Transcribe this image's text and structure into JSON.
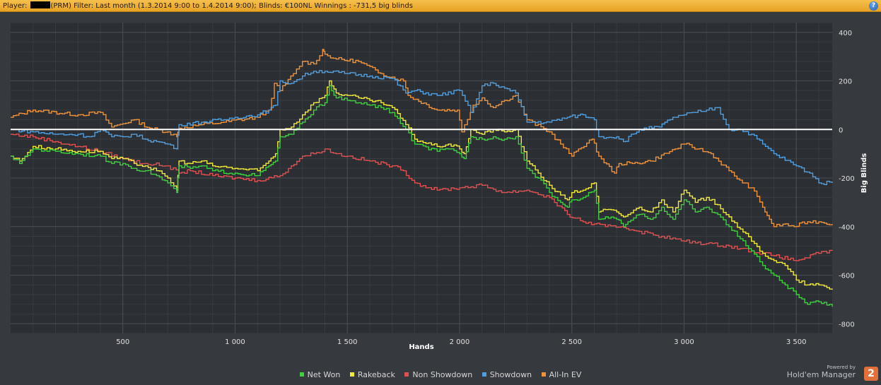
{
  "header": {
    "player_label": "Player:",
    "player_suffix": "(PRM)",
    "filter_text": "Filter:  Last month (1.3.2014 9:00 to 1.4.2014 9:00); Blinds: €100NL Winnings : -731,5 big blinds",
    "help_icon": "question-mark-icon"
  },
  "chart_data": {
    "type": "line",
    "title": "",
    "xlabel": "Hands",
    "ylabel": "Big Blinds",
    "xlim": [
      0,
      3660
    ],
    "ylim": [
      -840,
      440
    ],
    "x_ticks": [
      500,
      1000,
      1500,
      2000,
      2500,
      3000,
      3500
    ],
    "x_tick_labels": [
      "500",
      "1 000",
      "1 500",
      "2 000",
      "2 500",
      "3 000",
      "3 500"
    ],
    "y_ticks": [
      400,
      200,
      0,
      -200,
      -400,
      -600,
      -800
    ],
    "y_tick_labels": [
      "400",
      "200",
      "0",
      "-200",
      "-400",
      "-600",
      "-800"
    ],
    "grid": true,
    "zero_line": true,
    "legend_position": "bottom",
    "series": [
      {
        "name": "All-In EV",
        "color": "#f0923a",
        "x": [
          0,
          100,
          300,
          400,
          450,
          550,
          620,
          700,
          740,
          750,
          850,
          950,
          1100,
          1150,
          1175,
          1200,
          1260,
          1300,
          1350,
          1390,
          1400,
          1450,
          1550,
          1650,
          1750,
          1770,
          1900,
          1990,
          2010,
          2060,
          2100,
          2150,
          2200,
          2250,
          2300,
          2400,
          2450,
          2500,
          2530,
          2590,
          2620,
          2690,
          2710,
          2770,
          2850,
          2960,
          3000,
          3060,
          3120,
          3200,
          3260,
          3300,
          3350,
          3380,
          3400,
          3440,
          3490,
          3550,
          3600,
          3660
        ],
        "y": [
          50,
          80,
          60,
          70,
          10,
          40,
          5,
          -10,
          -30,
          5,
          20,
          30,
          50,
          80,
          190,
          160,
          230,
          280,
          270,
          330,
          310,
          290,
          280,
          230,
          200,
          140,
          80,
          80,
          -10,
          100,
          130,
          90,
          120,
          140,
          40,
          -10,
          -60,
          -110,
          -80,
          -40,
          -110,
          -180,
          -140,
          -140,
          -130,
          -80,
          -60,
          -80,
          -100,
          -170,
          -220,
          -240,
          -320,
          -370,
          -400,
          -390,
          -400,
          -380,
          -380,
          -390
        ]
      },
      {
        "name": "Showdown",
        "color": "#4f9ee0",
        "x": [
          0,
          100,
          200,
          300,
          350,
          400,
          450,
          500,
          550,
          600,
          650,
          700,
          740,
          750,
          850,
          950,
          1000,
          1100,
          1150,
          1180,
          1200,
          1250,
          1300,
          1350,
          1400,
          1500,
          1600,
          1700,
          1760,
          1800,
          1900,
          2000,
          2050,
          2100,
          2150,
          2200,
          2250,
          2300,
          2400,
          2480,
          2550,
          2600,
          2620,
          2700,
          2730,
          2800,
          2890,
          2950,
          3000,
          3050,
          3100,
          3150,
          3200,
          3250,
          3300,
          3350,
          3400,
          3500,
          3560,
          3600,
          3660
        ],
        "y": [
          0,
          -10,
          -20,
          -20,
          -30,
          0,
          -30,
          -30,
          -20,
          -40,
          -50,
          -60,
          -80,
          20,
          30,
          40,
          50,
          60,
          80,
          100,
          200,
          190,
          220,
          240,
          240,
          230,
          220,
          210,
          150,
          160,
          140,
          160,
          70,
          180,
          190,
          170,
          150,
          30,
          30,
          50,
          60,
          40,
          -30,
          -30,
          -50,
          0,
          10,
          50,
          60,
          70,
          80,
          90,
          0,
          0,
          -20,
          -60,
          -100,
          -150,
          -180,
          -220,
          -220
        ]
      },
      {
        "name": "Non Showdown",
        "color": "#e05050",
        "x": [
          0,
          100,
          200,
          300,
          400,
          500,
          600,
          700,
          750,
          800,
          900,
          1000,
          1100,
          1200,
          1250,
          1300,
          1350,
          1400,
          1450,
          1500,
          1600,
          1700,
          1750,
          1800,
          1900,
          2000,
          2100,
          2200,
          2300,
          2400,
          2480,
          2550,
          2650,
          2720,
          2800,
          2900,
          3000,
          3100,
          3200,
          3300,
          3400,
          3500,
          3600,
          3660
        ],
        "y": [
          -20,
          -30,
          -50,
          -70,
          -90,
          -120,
          -140,
          -150,
          -180,
          -170,
          -190,
          -200,
          -210,
          -190,
          -150,
          -110,
          -100,
          -80,
          -100,
          -110,
          -130,
          -150,
          -170,
          -220,
          -250,
          -240,
          -230,
          -260,
          -250,
          -280,
          -350,
          -380,
          -400,
          -400,
          -420,
          -440,
          -460,
          -470,
          -480,
          -500,
          -520,
          -540,
          -510,
          -500
        ]
      },
      {
        "name": "Rakeback",
        "color": "#f2ea3a",
        "x": [
          0,
          40,
          100,
          200,
          300,
          400,
          450,
          500,
          550,
          600,
          650,
          700,
          740,
          750,
          800,
          850,
          900,
          1000,
          1100,
          1150,
          1180,
          1200,
          1250,
          1300,
          1350,
          1400,
          1420,
          1450,
          1500,
          1550,
          1600,
          1650,
          1700,
          1760,
          1800,
          1900,
          1950,
          2000,
          2020,
          2050,
          2100,
          2150,
          2200,
          2250,
          2300,
          2350,
          2400,
          2450,
          2480,
          2500,
          2550,
          2600,
          2620,
          2650,
          2700,
          2730,
          2750,
          2800,
          2850,
          2900,
          2950,
          3000,
          3050,
          3100,
          3150,
          3200,
          3250,
          3300,
          3350,
          3400,
          3450,
          3500,
          3550,
          3600,
          3660
        ],
        "y": [
          -110,
          -130,
          -70,
          -80,
          -90,
          -90,
          -120,
          -120,
          -140,
          -150,
          -170,
          -200,
          -250,
          -130,
          -140,
          -130,
          -150,
          -160,
          -170,
          -130,
          -100,
          0,
          10,
          60,
          110,
          140,
          200,
          150,
          140,
          130,
          120,
          110,
          90,
          20,
          -40,
          -70,
          -60,
          -80,
          -100,
          0,
          -20,
          0,
          -10,
          0,
          -130,
          -180,
          -230,
          -270,
          -290,
          -260,
          -250,
          -220,
          -340,
          -330,
          -340,
          -360,
          -350,
          -320,
          -340,
          -290,
          -340,
          -250,
          -300,
          -280,
          -310,
          -360,
          -410,
          -460,
          -510,
          -540,
          -560,
          -620,
          -640,
          -640,
          -660
        ]
      },
      {
        "name": "Net Won",
        "color": "#3fd03f",
        "x": [
          0,
          40,
          100,
          200,
          300,
          400,
          450,
          500,
          550,
          600,
          650,
          700,
          740,
          750,
          800,
          850,
          900,
          1000,
          1100,
          1150,
          1180,
          1200,
          1250,
          1300,
          1350,
          1400,
          1420,
          1450,
          1500,
          1550,
          1600,
          1650,
          1700,
          1760,
          1800,
          1900,
          1950,
          2000,
          2020,
          2050,
          2100,
          2150,
          2200,
          2250,
          2300,
          2350,
          2400,
          2450,
          2480,
          2500,
          2550,
          2600,
          2620,
          2650,
          2700,
          2730,
          2750,
          2800,
          2850,
          2900,
          2950,
          3000,
          3050,
          3100,
          3150,
          3200,
          3250,
          3300,
          3350,
          3400,
          3450,
          3500,
          3550,
          3600,
          3660
        ],
        "y": [
          -110,
          -140,
          -80,
          -90,
          -100,
          -110,
          -140,
          -140,
          -160,
          -170,
          -190,
          -220,
          -260,
          -150,
          -160,
          -150,
          -170,
          -180,
          -190,
          -150,
          -130,
          -30,
          -20,
          30,
          80,
          110,
          180,
          130,
          120,
          110,
          100,
          90,
          70,
          0,
          -60,
          -90,
          -80,
          -100,
          -120,
          -30,
          -40,
          -30,
          -40,
          -30,
          -160,
          -200,
          -260,
          -300,
          -320,
          -290,
          -280,
          -250,
          -370,
          -360,
          -370,
          -400,
          -380,
          -350,
          -370,
          -320,
          -370,
          -290,
          -340,
          -320,
          -350,
          -400,
          -450,
          -500,
          -560,
          -600,
          -640,
          -680,
          -720,
          -710,
          -730
        ]
      }
    ]
  },
  "legend": {
    "items": [
      "Net Won",
      "Rakeback",
      "Non Showdown",
      "Showdown",
      "All-In EV"
    ],
    "colors": [
      "#3fd03f",
      "#f2ea3a",
      "#e05050",
      "#4f9ee0",
      "#f0923a"
    ]
  },
  "branding": {
    "powered_by": "Powered by",
    "name": "Hold'em Manager",
    "logo_text": "2"
  }
}
